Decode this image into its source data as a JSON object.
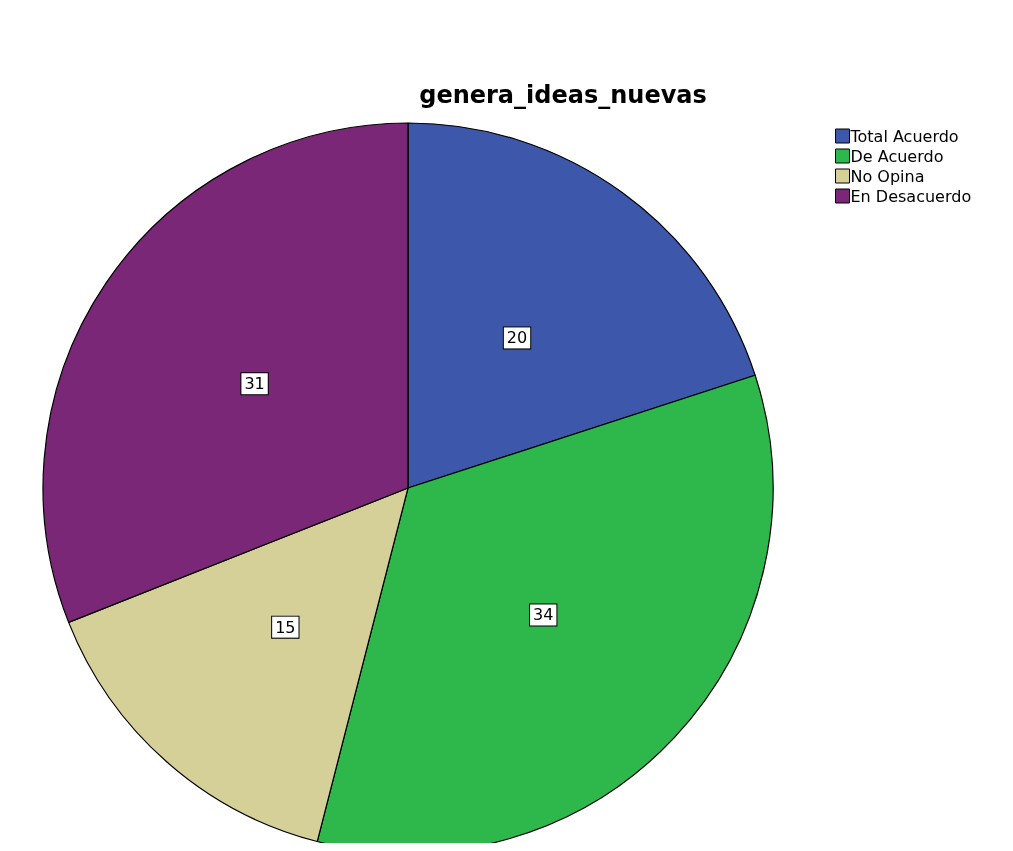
{
  "chart_data": {
    "type": "pie",
    "title": "genera_ideas_nuevas",
    "categories": [
      "Total Acuerdo",
      "De Acuerdo",
      "No Opina",
      "En Desacuerdo"
    ],
    "values": [
      20,
      34,
      15,
      31
    ],
    "colors": [
      "#3d57ab",
      "#2eb84b",
      "#d5cf98",
      "#7b2777"
    ],
    "data_labels": true,
    "legend": "top right"
  }
}
